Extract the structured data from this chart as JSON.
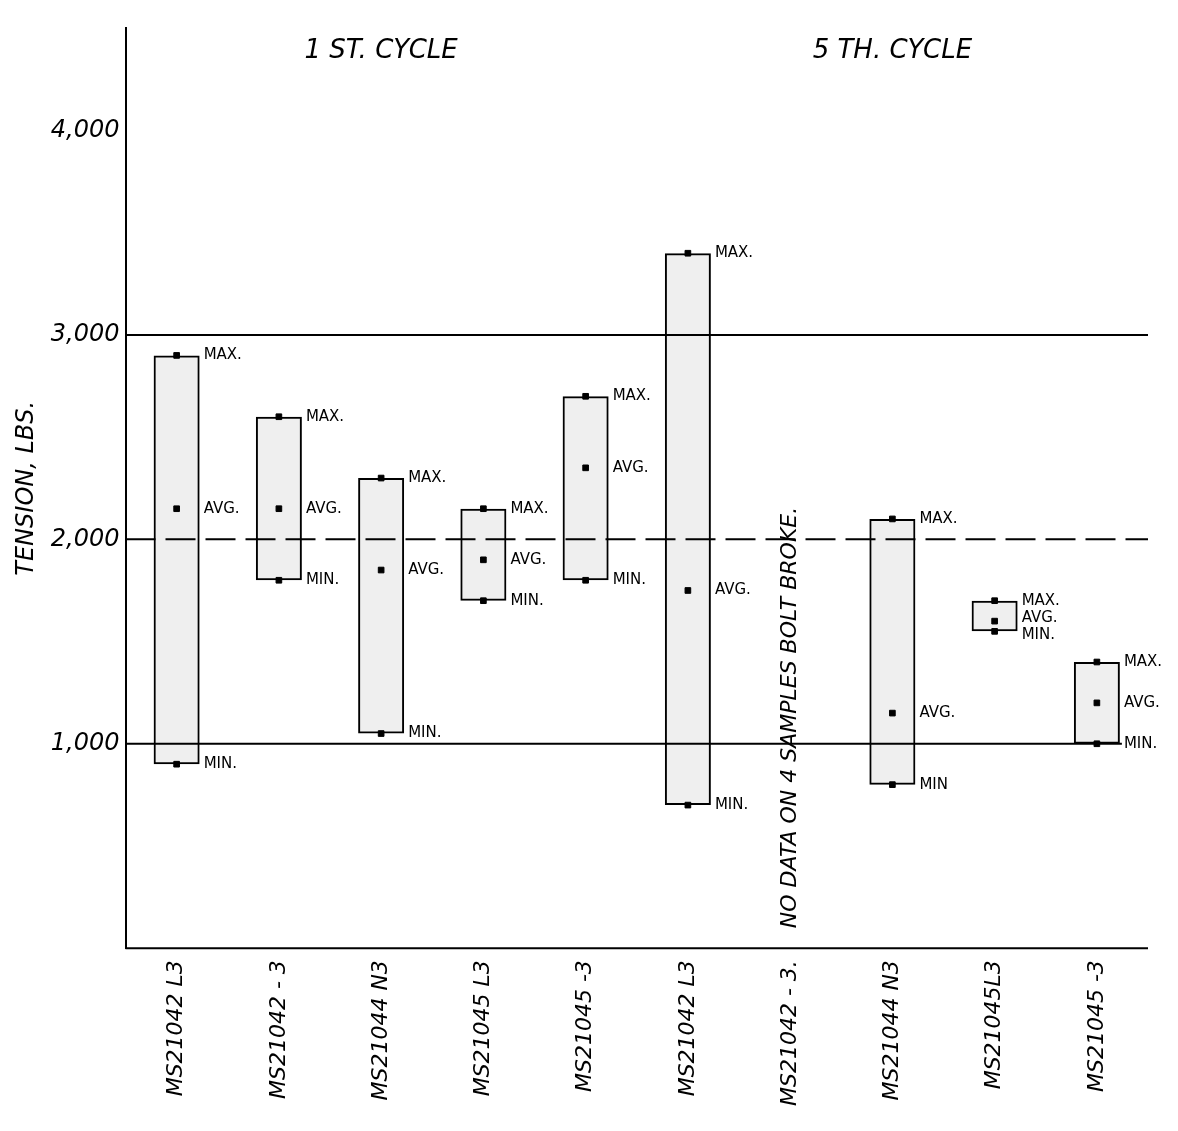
{
  "chart_data": {
    "type": "bar",
    "ylabel": "TENSION, LBS.",
    "categories": [
      "MS21042 L3",
      "MS21042 - 3",
      "MS21044 N3",
      "MS21045 L3",
      "MS21045 -3",
      "MS21042 L3",
      "MS21042 - 3.",
      "MS21044 N3",
      "MS21045L3",
      "MS21045 -3"
    ],
    "series": [
      {
        "color": "#000000",
        "base": [
          900,
          1800,
          1050,
          1700,
          1800,
          700,
          null,
          800,
          1550,
          1000
        ],
        "values": [
          2000,
          800,
          1250,
          450,
          900,
          2700,
          null,
          1300,
          150,
          400
        ]
      },
      {
        "type": "scatter",
        "color": "#000000",
        "marker": "square",
        "values": [
          2900,
          2600,
          2300,
          2150,
          2700,
          3400,
          null,
          2100,
          1700,
          1400
        ],
        "value_labels": [
          "MAX.",
          "MAX.",
          "MAX.",
          "MAX.",
          "MAX.",
          "MAX.",
          null,
          "MAX.",
          "MAX.",
          "MAX."
        ]
      },
      {
        "type": "scatter",
        "color": "#000000",
        "marker": "square",
        "values": [
          2150,
          2150,
          1850,
          1900,
          2350,
          1750,
          null,
          1150,
          1600,
          1200
        ],
        "value_labels": [
          "AVG.",
          "AVG.",
          "AVG.",
          "AVG.",
          "AVG.",
          "AVG.",
          null,
          "AVG.",
          "AVG.",
          "AVG."
        ]
      },
      {
        "type": "scatter",
        "color": "#000000",
        "marker": "square",
        "values": [
          900,
          1800,
          1050,
          1700,
          1800,
          700,
          null,
          800,
          1550,
          1000
        ],
        "value_labels": [
          "MIN.",
          "MIN.",
          "MIN.",
          "MIN.",
          "MIN.",
          "MIN.",
          null,
          "MIN",
          "MIN.",
          "MIN."
        ]
      }
    ],
    "ylim": [
      0,
      4500
    ],
    "yticks": [
      {
        "value": 1000,
        "label": "1,000"
      },
      {
        "value": 2000,
        "label": "2,000"
      },
      {
        "value": 3000,
        "label": "3,000"
      },
      {
        "value": 4000,
        "label": "4,000"
      }
    ],
    "ref_lines": [
      {
        "axis": "y",
        "value": 1000,
        "color": "#000000"
      },
      {
        "axis": "y",
        "value": 2000,
        "color": "#000000",
        "line_style": "dashed"
      },
      {
        "axis": "y",
        "value": 3000,
        "color": "#000000"
      }
    ],
    "annotations": [
      "1 ST. CYCLE",
      "5 TH. CYCLE",
      "NO DATA ON 4 SAMPLES BOLT BROKE."
    ],
    "legend": false,
    "grid": false
  }
}
